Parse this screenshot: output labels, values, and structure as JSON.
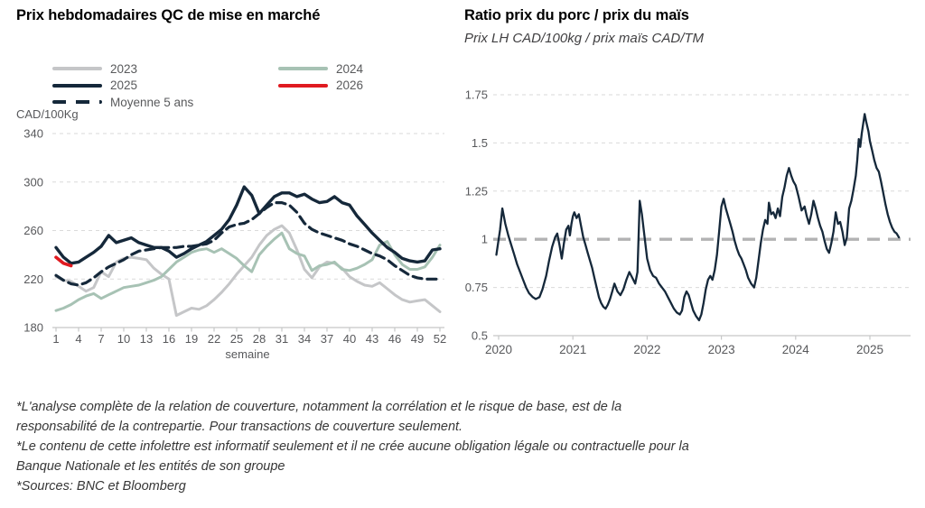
{
  "footnotes": {
    "lines": [
      "*L'analyse complète de la relation de couverture, notamment la corrélation et le risque de base, est de la",
      "responsabilité de la contrepartie. Pour transactions de couverture seulement.",
      "*Le contenu de cette infolettre est informatif seulement et il ne crée aucune obligation légale ou contractuelle pour la",
      "Banque Nationale et les entités de son groupe",
      "*Sources: BNC et Bloomberg"
    ]
  },
  "colors": {
    "navy": "#15283a",
    "gray_2023": "#c5c6c8",
    "green_2024": "#a7c2b4",
    "red_2026": "#e01a20",
    "gridline": "#dadada",
    "axis": "#c6c7c8",
    "tick_text": "#57585b",
    "reference_gray": "#b2b2b3"
  },
  "chart_data": [
    {
      "type": "line",
      "title": "Prix hebdomadaires QC de mise en marché",
      "ylabel": "CAD/100Kg",
      "xlabel": "semaine",
      "xlim": [
        1,
        52
      ],
      "ylim": [
        180,
        348
      ],
      "y_ticks": [
        180,
        220,
        260,
        300,
        340
      ],
      "x_ticks": [
        1,
        4,
        7,
        10,
        13,
        16,
        19,
        22,
        25,
        28,
        31,
        34,
        37,
        40,
        43,
        46,
        49,
        52
      ],
      "grid": "horizontal-dashed",
      "legend_position": "top-left, two columns",
      "legend": [
        {
          "label": "2023",
          "color": "#c5c6c8",
          "dashed": false
        },
        {
          "label": "2024",
          "color": "#a7c2b4",
          "dashed": false
        },
        {
          "label": "2025",
          "color": "#15283a",
          "dashed": false
        },
        {
          "label": "2026",
          "color": "#e01a20",
          "dashed": false
        },
        {
          "label": "Moyenne 5 ans",
          "color": "#15283a",
          "dashed": true
        }
      ],
      "series": [
        {
          "name": "2023",
          "color": "#c5c6c8",
          "dash": null,
          "width": 3,
          "x_start": 1,
          "values": [
            222,
            219,
            218,
            214,
            210,
            213,
            226,
            222,
            234,
            237,
            238,
            237,
            236,
            229,
            224,
            220,
            190,
            193,
            196,
            195,
            198,
            203,
            209,
            216,
            224,
            231,
            238,
            248,
            256,
            261,
            264,
            258,
            244,
            228,
            221,
            230,
            234,
            233,
            229,
            222,
            218,
            215,
            214,
            217,
            212,
            207,
            203,
            201,
            202,
            203,
            198,
            193
          ]
        },
        {
          "name": "2024",
          "color": "#a7c2b4",
          "dash": null,
          "width": 3,
          "x_start": 1,
          "values": [
            194,
            196,
            199,
            203,
            206,
            208,
            204,
            207,
            210,
            213,
            214,
            215,
            217,
            219,
            222,
            228,
            234,
            238,
            242,
            244,
            245,
            242,
            245,
            241,
            237,
            231,
            226,
            240,
            247,
            253,
            258,
            245,
            241,
            239,
            227,
            231,
            232,
            234,
            228,
            227,
            229,
            232,
            236,
            248,
            251,
            240,
            232,
            228,
            228,
            230,
            238,
            248
          ]
        },
        {
          "name": "Moyenne 5 ans",
          "color": "#15283a",
          "dash": "10 6",
          "width": 3.2,
          "x_start": 1,
          "values": [
            223,
            219,
            216,
            215,
            217,
            221,
            226,
            230,
            233,
            236,
            240,
            243,
            244,
            245,
            246,
            246,
            246,
            247,
            247,
            248,
            249,
            252,
            258,
            263,
            265,
            266,
            269,
            274,
            279,
            283,
            283,
            281,
            275,
            266,
            261,
            258,
            256,
            254,
            252,
            249,
            247,
            244,
            241,
            239,
            236,
            231,
            227,
            223,
            221,
            220,
            220,
            220
          ]
        },
        {
          "name": "2025",
          "color": "#15283a",
          "dash": null,
          "width": 3.4,
          "x_start": 1,
          "values": [
            246,
            238,
            233,
            234,
            238,
            242,
            247,
            256,
            250,
            252,
            254,
            250,
            248,
            246,
            246,
            243,
            238,
            241,
            245,
            248,
            251,
            256,
            261,
            269,
            281,
            296,
            289,
            274,
            281,
            288,
            291,
            291,
            288,
            290,
            286,
            283,
            284,
            288,
            283,
            281,
            272,
            265,
            258,
            252,
            246,
            242,
            237,
            235,
            234,
            235,
            244,
            245
          ]
        },
        {
          "name": "2026",
          "color": "#e01a20",
          "dash": null,
          "width": 3.6,
          "x_start": 1,
          "values": [
            238,
            233,
            231
          ]
        }
      ]
    },
    {
      "type": "line",
      "title": "Ratio prix du porc / prix du maïs",
      "subtitle": "Prix LH CAD/100kg / prix maïs CAD/TM",
      "xlim": [
        2019.95,
        2025.55
      ],
      "ylim": [
        0.5,
        1.78
      ],
      "y_ticks": [
        0.5,
        0.75,
        1,
        1.25,
        1.5,
        1.75
      ],
      "x_ticks": [
        2020,
        2021,
        2022,
        2023,
        2024,
        2025
      ],
      "grid": "horizontal-dashed",
      "reference_line": {
        "y": 1,
        "color": "#b2b2b3",
        "dash": "14 9",
        "width": 3.4
      },
      "series": [
        {
          "name": "Ratio porc/maïs",
          "color": "#15283a",
          "width": 2.3,
          "points": [
            [
              2019.97,
              0.92
            ],
            [
              2020.02,
              1.05
            ],
            [
              2020.05,
              1.16
            ],
            [
              2020.09,
              1.08
            ],
            [
              2020.13,
              1.02
            ],
            [
              2020.17,
              0.97
            ],
            [
              2020.21,
              0.92
            ],
            [
              2020.25,
              0.87
            ],
            [
              2020.29,
              0.83
            ],
            [
              2020.33,
              0.79
            ],
            [
              2020.37,
              0.75
            ],
            [
              2020.41,
              0.72
            ],
            [
              2020.46,
              0.7
            ],
            [
              2020.5,
              0.69
            ],
            [
              2020.55,
              0.7
            ],
            [
              2020.59,
              0.74
            ],
            [
              2020.64,
              0.81
            ],
            [
              2020.68,
              0.89
            ],
            [
              2020.72,
              0.96
            ],
            [
              2020.76,
              1.01
            ],
            [
              2020.79,
              1.03
            ],
            [
              2020.82,
              0.97
            ],
            [
              2020.85,
              0.9
            ],
            [
              2020.88,
              0.98
            ],
            [
              2020.91,
              1.05
            ],
            [
              2020.94,
              1.07
            ],
            [
              2020.96,
              1.02
            ],
            [
              2020.98,
              1.08
            ],
            [
              2021.0,
              1.12
            ],
            [
              2021.02,
              1.14
            ],
            [
              2021.05,
              1.11
            ],
            [
              2021.08,
              1.13
            ],
            [
              2021.11,
              1.07
            ],
            [
              2021.14,
              1.01
            ],
            [
              2021.17,
              0.97
            ],
            [
              2021.2,
              0.93
            ],
            [
              2021.23,
              0.89
            ],
            [
              2021.26,
              0.85
            ],
            [
              2021.29,
              0.8
            ],
            [
              2021.32,
              0.75
            ],
            [
              2021.35,
              0.7
            ],
            [
              2021.38,
              0.67
            ],
            [
              2021.41,
              0.65
            ],
            [
              2021.44,
              0.64
            ],
            [
              2021.47,
              0.66
            ],
            [
              2021.5,
              0.69
            ],
            [
              2021.53,
              0.73
            ],
            [
              2021.56,
              0.77
            ],
            [
              2021.6,
              0.73
            ],
            [
              2021.64,
              0.71
            ],
            [
              2021.68,
              0.74
            ],
            [
              2021.72,
              0.79
            ],
            [
              2021.76,
              0.83
            ],
            [
              2021.8,
              0.8
            ],
            [
              2021.84,
              0.77
            ],
            [
              2021.87,
              0.83
            ],
            [
              2021.9,
              1.2
            ],
            [
              2021.93,
              1.13
            ],
            [
              2021.96,
              1.03
            ],
            [
              2022.0,
              0.9
            ],
            [
              2022.04,
              0.84
            ],
            [
              2022.08,
              0.81
            ],
            [
              2022.12,
              0.8
            ],
            [
              2022.16,
              0.77
            ],
            [
              2022.2,
              0.75
            ],
            [
              2022.24,
              0.73
            ],
            [
              2022.28,
              0.7
            ],
            [
              2022.32,
              0.67
            ],
            [
              2022.36,
              0.64
            ],
            [
              2022.4,
              0.62
            ],
            [
              2022.44,
              0.61
            ],
            [
              2022.47,
              0.63
            ],
            [
              2022.5,
              0.7
            ],
            [
              2022.53,
              0.73
            ],
            [
              2022.56,
              0.71
            ],
            [
              2022.59,
              0.67
            ],
            [
              2022.62,
              0.63
            ],
            [
              2022.66,
              0.6
            ],
            [
              2022.7,
              0.58
            ],
            [
              2022.73,
              0.61
            ],
            [
              2022.76,
              0.67
            ],
            [
              2022.79,
              0.74
            ],
            [
              2022.82,
              0.79
            ],
            [
              2022.85,
              0.81
            ],
            [
              2022.88,
              0.79
            ],
            [
              2022.91,
              0.84
            ],
            [
              2022.94,
              0.92
            ],
            [
              2022.97,
              1.04
            ],
            [
              2023.0,
              1.17
            ],
            [
              2023.03,
              1.21
            ],
            [
              2023.06,
              1.16
            ],
            [
              2023.09,
              1.12
            ],
            [
              2023.12,
              1.08
            ],
            [
              2023.15,
              1.04
            ],
            [
              2023.18,
              0.99
            ],
            [
              2023.21,
              0.95
            ],
            [
              2023.24,
              0.92
            ],
            [
              2023.27,
              0.9
            ],
            [
              2023.3,
              0.87
            ],
            [
              2023.33,
              0.84
            ],
            [
              2023.36,
              0.8
            ],
            [
              2023.4,
              0.77
            ],
            [
              2023.44,
              0.75
            ],
            [
              2023.47,
              0.8
            ],
            [
              2023.5,
              0.89
            ],
            [
              2023.53,
              0.98
            ],
            [
              2023.56,
              1.05
            ],
            [
              2023.59,
              1.1
            ],
            [
              2023.62,
              1.08
            ],
            [
              2023.64,
              1.19
            ],
            [
              2023.67,
              1.13
            ],
            [
              2023.7,
              1.14
            ],
            [
              2023.73,
              1.11
            ],
            [
              2023.76,
              1.16
            ],
            [
              2023.79,
              1.12
            ],
            [
              2023.82,
              1.22
            ],
            [
              2023.85,
              1.27
            ],
            [
              2023.88,
              1.33
            ],
            [
              2023.91,
              1.37
            ],
            [
              2023.94,
              1.33
            ],
            [
              2023.97,
              1.3
            ],
            [
              2024.0,
              1.28
            ],
            [
              2024.04,
              1.22
            ],
            [
              2024.08,
              1.15
            ],
            [
              2024.12,
              1.17
            ],
            [
              2024.15,
              1.12
            ],
            [
              2024.18,
              1.08
            ],
            [
              2024.21,
              1.13
            ],
            [
              2024.24,
              1.2
            ],
            [
              2024.27,
              1.16
            ],
            [
              2024.3,
              1.11
            ],
            [
              2024.33,
              1.07
            ],
            [
              2024.36,
              1.04
            ],
            [
              2024.39,
              0.99
            ],
            [
              2024.42,
              0.95
            ],
            [
              2024.45,
              0.93
            ],
            [
              2024.48,
              0.98
            ],
            [
              2024.51,
              1.04
            ],
            [
              2024.54,
              1.14
            ],
            [
              2024.57,
              1.08
            ],
            [
              2024.6,
              1.09
            ],
            [
              2024.63,
              1.04
            ],
            [
              2024.66,
              0.97
            ],
            [
              2024.69,
              1.01
            ],
            [
              2024.72,
              1.16
            ],
            [
              2024.75,
              1.2
            ],
            [
              2024.78,
              1.26
            ],
            [
              2024.81,
              1.33
            ],
            [
              2024.83,
              1.41
            ],
            [
              2024.85,
              1.52
            ],
            [
              2024.87,
              1.48
            ],
            [
              2024.89,
              1.55
            ],
            [
              2024.91,
              1.6
            ],
            [
              2024.93,
              1.65
            ],
            [
              2024.95,
              1.61
            ],
            [
              2024.98,
              1.56
            ],
            [
              2025.0,
              1.51
            ],
            [
              2025.03,
              1.46
            ],
            [
              2025.06,
              1.41
            ],
            [
              2025.09,
              1.37
            ],
            [
              2025.12,
              1.35
            ],
            [
              2025.15,
              1.3
            ],
            [
              2025.18,
              1.24
            ],
            [
              2025.21,
              1.18
            ],
            [
              2025.24,
              1.13
            ],
            [
              2025.27,
              1.09
            ],
            [
              2025.3,
              1.06
            ],
            [
              2025.33,
              1.04
            ],
            [
              2025.36,
              1.03
            ],
            [
              2025.39,
              1.01
            ]
          ]
        }
      ]
    }
  ]
}
